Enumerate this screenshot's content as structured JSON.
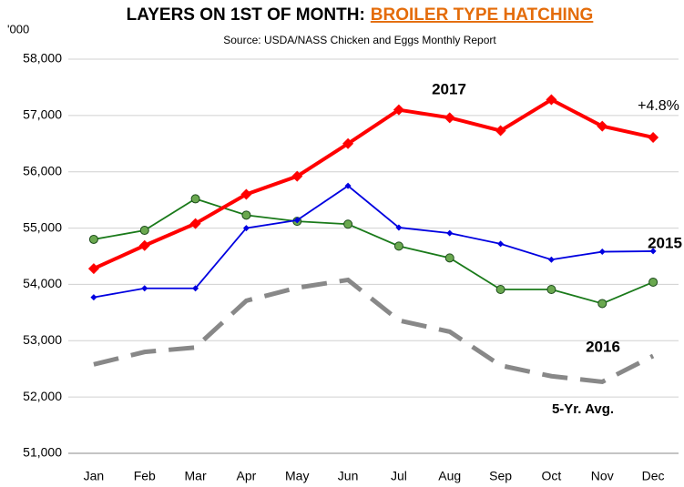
{
  "chart_data": {
    "type": "line",
    "title": "LAYERS ON 1ST OF MONTH:",
    "title_highlight": "BROILER TYPE HATCHING",
    "subtitle": "Source: USDA/NASS Chicken and Eggs Monthly Report",
    "unit_label": "'000",
    "annotation": "+4.8%",
    "categories": [
      "Jan",
      "Feb",
      "Mar",
      "Apr",
      "May",
      "Jun",
      "Jul",
      "Aug",
      "Sep",
      "Oct",
      "Nov",
      "Dec"
    ],
    "series": [
      {
        "name": "2017",
        "color": "#ff0000",
        "marker": "diamond",
        "values": [
          54280,
          54690,
          55080,
          55600,
          55920,
          56500,
          57100,
          56960,
          56730,
          57280,
          56810,
          56610
        ]
      },
      {
        "name": "2015",
        "color": "#0000e0",
        "marker": "diamond",
        "values": [
          53770,
          53930,
          53930,
          55000,
          55140,
          55750,
          55010,
          54910,
          54720,
          54440,
          54580,
          54590
        ]
      },
      {
        "name": "2016",
        "color": "#1a7a1a",
        "marker": "circle",
        "values": [
          54800,
          54960,
          55520,
          55230,
          55120,
          55070,
          54680,
          54470,
          53910,
          53910,
          53660,
          54040
        ]
      },
      {
        "name": "5-Yr. Avg.",
        "color": "#888888",
        "marker": "none",
        "dashed": true,
        "values": [
          52580,
          52800,
          52880,
          53710,
          53940,
          54080,
          53360,
          53160,
          52560,
          52370,
          52270,
          52730
        ]
      }
    ],
    "ylim": [
      51000,
      58000
    ],
    "yticks": [
      {
        "value": 51000,
        "label": "51,000"
      },
      {
        "value": 52000,
        "label": "52,000"
      },
      {
        "value": 53000,
        "label": "53,000"
      },
      {
        "value": 54000,
        "label": "54,000"
      },
      {
        "value": 55000,
        "label": "55,000"
      },
      {
        "value": 56000,
        "label": "56,000"
      },
      {
        "value": 57000,
        "label": "57,000"
      },
      {
        "value": 58000,
        "label": "58,000"
      }
    ],
    "grid": true
  }
}
